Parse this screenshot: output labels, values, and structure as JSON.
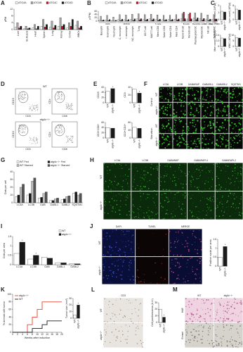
{
  "chart_data": [
    {
      "type": "bar",
      "label": "A",
      "ylabel": "pPM",
      "categories": [
        "Liver",
        "Sk.Muscle",
        "Heart",
        "Spleen",
        "Lung",
        "Kidney",
        "Cortex",
        "WBCs"
      ],
      "ylim": [
        0,
        12
      ],
      "yticks": [
        0,
        4,
        8,
        12
      ],
      "series": [
        {
          "name": "ATG4A",
          "color": "#ffffff",
          "values": [
            1.5,
            0.5,
            1,
            2,
            1.5,
            2,
            1,
            2.5
          ]
        },
        {
          "name": "ATG4B",
          "color": "#a6a6a6",
          "values": [
            4,
            2,
            3,
            6,
            5,
            7,
            4,
            5
          ]
        },
        {
          "name": "ATG4C",
          "color": "#b2182b",
          "values": [
            1,
            0.5,
            0.5,
            1.5,
            1,
            2,
            2,
            1
          ]
        },
        {
          "name": "ATG4D",
          "color": "#1a1a1a",
          "values": [
            2,
            1,
            2,
            3,
            2.5,
            3,
            6,
            2
          ]
        }
      ]
    },
    {
      "type": "bar",
      "label": "B",
      "ylabel": "pTPM",
      "categories": [
        "Basophil",
        "Eosinophil",
        "Neutrophil",
        "C. monocyte",
        "I. monocyte",
        "NC. monocyte",
        "T-reg",
        "GD T-cell",
        "MAIT T-cell",
        "Mem CD8",
        "Naive CD8",
        "Naive CD4",
        "Mem CD4",
        "Naive B-cell",
        "Mem B-cell",
        "Plasmacytoid DC",
        "Myeloid DC",
        "NK cell",
        "Total PBMC"
      ],
      "category_groups": [
        "GRA",
        "GRA",
        "GRA",
        "MONO",
        "MONO",
        "MONO",
        "T-cells",
        "T-cells",
        "T-cells",
        "T-cells",
        "T-cells",
        "T-cells",
        "T-cells",
        "B-cells",
        "B-cells",
        "Dendritic cells",
        "Dendritic cells",
        "NK cells",
        "Total PBMC"
      ],
      "ylim": [
        0,
        60
      ],
      "yticks": [
        0,
        20,
        40,
        60
      ],
      "series": [
        {
          "name": "ATG4A",
          "color": "#ffffff",
          "values": [
            5,
            8,
            4,
            10,
            9,
            12,
            15,
            12,
            14,
            10,
            9,
            10,
            12,
            14,
            13,
            18,
            15,
            10,
            12
          ]
        },
        {
          "name": "ATG4B",
          "color": "#a6a6a6",
          "values": [
            30,
            35,
            25,
            40,
            38,
            42,
            45,
            40,
            42,
            38,
            35,
            36,
            40,
            45,
            42,
            50,
            48,
            38,
            40
          ]
        },
        {
          "name": "ATG4C",
          "color": "#b2182b",
          "values": [
            2,
            3,
            1,
            4,
            3,
            5,
            8,
            6,
            7,
            6,
            5,
            6,
            8,
            55,
            50,
            10,
            8,
            5,
            12
          ]
        },
        {
          "name": "ATG4D",
          "color": "#1a1a1a",
          "values": [
            8,
            10,
            6,
            12,
            10,
            14,
            15,
            12,
            14,
            12,
            10,
            11,
            13,
            15,
            14,
            20,
            16,
            12,
            13
          ]
        }
      ]
    },
    {
      "type": "bar",
      "label": "C",
      "ylabel": "Gra count (10³/µl)",
      "categories": [
        "WT",
        "atg4c−/−"
      ],
      "values": [
        1.2,
        1.1
      ],
      "colors": [
        "#ffffff",
        "#1a1a1a"
      ],
      "ylim": [
        0,
        2
      ],
      "yticks": [
        0,
        1,
        2
      ]
    },
    {
      "type": "bar",
      "ylabel": "Lym count (10³/µl)",
      "categories": [
        "WT",
        "atg4c−/−"
      ],
      "values": [
        6,
        5.5
      ],
      "colors": [
        "#ffffff",
        "#1a1a1a"
      ],
      "ylim": [
        0,
        8
      ],
      "yticks": [
        0,
        4,
        8
      ]
    },
    {
      "type": "bar",
      "ylabel": "Mon count (10³/µl)",
      "categories": [
        "WT",
        "atg4c−/−"
      ],
      "values": [
        0.3,
        0.28
      ],
      "colors": [
        "#ffffff",
        "#1a1a1a"
      ],
      "ylim": [
        0,
        0.4
      ],
      "yticks": [
        0,
        0.2,
        0.4
      ]
    },
    {
      "type": "bar",
      "ylabel": "WBC (10³/µl)",
      "categories": [
        "WT",
        "atg4c−/−"
      ],
      "values": [
        8,
        7.5
      ],
      "colors": [
        "#ffffff",
        "#1a1a1a"
      ],
      "ylim": [
        0,
        10
      ],
      "yticks": [
        0,
        5,
        10
      ]
    },
    {
      "type": "bar",
      "label": "E",
      "ylabel": "CD19",
      "categories": [
        "WT",
        "atg4c−/−"
      ],
      "values": [
        45,
        55
      ],
      "colors": [
        "#ffffff",
        "#1a1a1a"
      ],
      "ylim": [
        0,
        60
      ],
      "yticks": [
        0,
        20,
        40,
        60
      ],
      "significance": [
        null,
        "*"
      ]
    },
    {
      "type": "bar",
      "ylabel": "CD3",
      "categories": [
        "WT",
        "atg4c−/−"
      ],
      "values": [
        35,
        25
      ],
      "colors": [
        "#ffffff",
        "#1a1a1a"
      ],
      "ylim": [
        0,
        40
      ],
      "yticks": [
        0,
        20,
        40
      ],
      "significance": [
        null,
        "*"
      ]
    },
    {
      "type": "bar",
      "ylabel": "CD3+CD8+",
      "categories": [
        "WT",
        "atg4c−/−"
      ],
      "values": [
        40,
        38
      ],
      "colors": [
        "#ffffff",
        "#1a1a1a"
      ],
      "ylim": [
        0,
        60
      ],
      "yticks": [
        0,
        20,
        40,
        60
      ]
    },
    {
      "type": "bar",
      "ylabel": "CD3+CD4+",
      "categories": [
        "WT",
        "atg4c−/−"
      ],
      "values": [
        55,
        50
      ],
      "colors": [
        "#ffffff",
        "#1a1a1a"
      ],
      "ylim": [
        0,
        80
      ],
      "yticks": [
        0,
        40,
        80
      ]
    },
    {
      "type": "bar",
      "label": "G",
      "ylabel": "Dots per cell",
      "categories": [
        "LC3A",
        "LC3B",
        "GAB",
        "GABL1",
        "GABL2",
        "SQSTM1"
      ],
      "ylim": [
        0,
        40
      ],
      "yticks": [
        0,
        10,
        20,
        30,
        40
      ],
      "series": [
        {
          "name": "WT Fed",
          "color": "#ffffff",
          "values": [
            8,
            10,
            6,
            3,
            4,
            12
          ]
        },
        {
          "name": "atg4c−/− Fed",
          "color": "#1a1a1a",
          "values": [
            10,
            12,
            7,
            3,
            5,
            14
          ]
        },
        {
          "name": "WT Starved",
          "color": "#bdbdbd",
          "values": [
            20,
            28,
            12,
            5,
            8,
            10
          ]
        },
        {
          "name": "atg4c−/− Starved",
          "color": "#555555",
          "values": [
            24,
            32,
            14,
            6,
            9,
            12
          ]
        }
      ]
    },
    {
      "type": "bar",
      "label": "I",
      "ylabel": "Dots per area",
      "categories": [
        "LC3A",
        "LC3B",
        "GAB",
        "GABL1",
        "GABL2"
      ],
      "ylim": [
        0,
        1.5
      ],
      "yticks": [
        0,
        0.5,
        1,
        1.5
      ],
      "series": [
        {
          "name": "WT",
          "color": "#ffffff",
          "values": [
            0.6,
            0.3,
            0.4,
            0.1,
            0.05
          ]
        },
        {
          "name": "atg4c−/−",
          "color": "#1a1a1a",
          "values": [
            1.2,
            0.5,
            0.35,
            0.1,
            0.05
          ],
          "significance": [
            "*",
            "*",
            null,
            null,
            null
          ]
        }
      ]
    },
    {
      "type": "bar",
      "ylabel": "Positive nuclei per area",
      "categories": [
        "WT",
        "atg4c−/−"
      ],
      "values": [
        0.5,
        1.1
      ],
      "colors": [
        "#ffffff",
        "#1a1a1a"
      ],
      "ylim": [
        0,
        1.5
      ],
      "yticks": [
        0,
        0.5,
        1,
        1.5
      ],
      "significance": [
        null,
        "*"
      ]
    },
    {
      "type": "line",
      "label": "K",
      "ylabel": "% Animals with tumor",
      "xlabel": "Weeks after induction",
      "xlim": [
        0,
        20
      ],
      "xticks": [
        0,
        2,
        4,
        6,
        8,
        10,
        12,
        14,
        16,
        18,
        20
      ],
      "ylim": [
        0,
        100
      ],
      "yticks": [
        0,
        20,
        40,
        60,
        80,
        100
      ],
      "x": [
        0,
        4,
        6,
        8,
        10,
        12,
        14,
        16,
        18,
        20
      ],
      "series": [
        {
          "name": "atg4c−/−",
          "color": "#e8432e",
          "values": [
            0,
            0,
            20,
            40,
            60,
            80,
            80,
            80,
            80,
            80
          ]
        },
        {
          "name": "WT",
          "color": "#1a1a1a",
          "values": [
            0,
            0,
            0,
            10,
            10,
            20,
            30,
            30,
            30,
            30
          ]
        }
      ]
    },
    {
      "type": "bar",
      "ylabel": "Tumor size (mm³)",
      "categories": [
        "WT",
        "atg4c−/−"
      ],
      "values": [
        5,
        20
      ],
      "colors": [
        "#ffffff",
        "#1a1a1a"
      ],
      "ylim": [
        0,
        30
      ],
      "yticks": [
        0,
        10,
        20,
        30
      ],
      "significance": [
        null,
        "*"
      ]
    },
    {
      "type": "bar",
      "ylabel": "Cell positives/area (A.U.)",
      "categories": [
        "WT",
        "atg4c−/−"
      ],
      "values": [
        20,
        8
      ],
      "colors": [
        "#ffffff",
        "#1a1a1a"
      ],
      "ylim": [
        0,
        30
      ],
      "yticks": [
        0,
        10,
        20,
        30
      ],
      "significance": [
        null,
        "*"
      ]
    }
  ],
  "figures": [
    {
      "label": "D",
      "rows": [
        "WT",
        "atg4c−/−"
      ],
      "plots": [
        {
          "ylabel": "CD19",
          "xlabel": "CD3"
        },
        {
          "ylabel": "CD4",
          "xlabel": "CD8"
        }
      ]
    },
    {
      "label": "F",
      "columns": [
        "LC3A",
        "LC3B",
        "GABARAP",
        "GABARL1",
        "GABARL2",
        "SQSTM1"
      ],
      "groups": [
        "Control",
        "Starvation"
      ],
      "rows": [
        "WT",
        "atg4c−/−"
      ]
    },
    {
      "label": "H",
      "columns": [
        "LC3A",
        "LC3B",
        "GABARAP",
        "GABARAPL1",
        "GABARAPL2"
      ],
      "rows": [
        "WT",
        "atg4c−/−"
      ]
    },
    {
      "label": "J",
      "columns": [
        "DAPI",
        "TUNEL",
        "MERGE"
      ],
      "rows": [
        "WT",
        "atg4c−/−"
      ]
    },
    {
      "label": "L",
      "columns": [
        "CD3"
      ],
      "rows": [
        "WT",
        "atg4c−/−"
      ]
    },
    {
      "label": "M",
      "columns": [
        "WT",
        "atg4c−/−"
      ],
      "rows": [
        "H&E",
        "Gomori"
      ]
    }
  ]
}
